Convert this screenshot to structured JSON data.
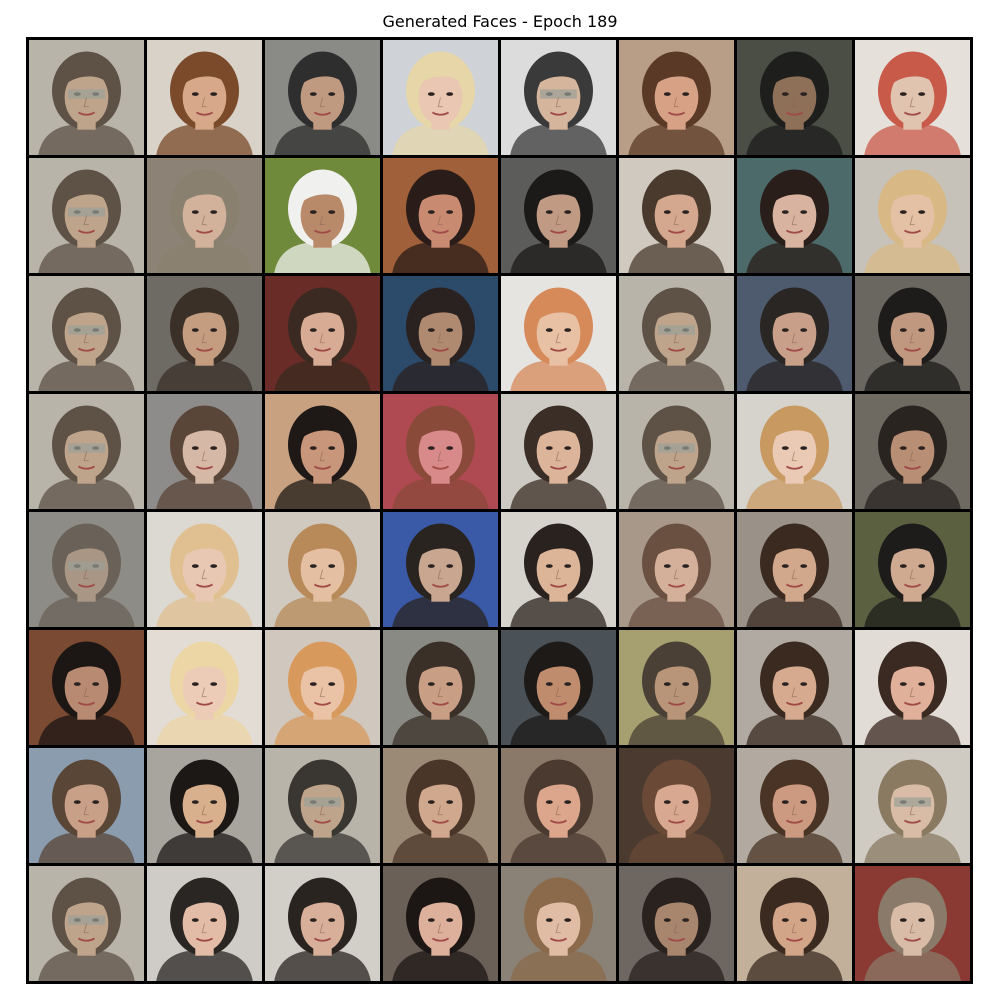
{
  "title": "Generated Faces - Epoch 189",
  "grid": {
    "rows": 8,
    "cols": 8,
    "tiles": [
      {
        "bg": "#b9b4aa",
        "hair": "#5e5246",
        "skin": "#bfa48c",
        "glasses": true
      },
      {
        "bg": "#d8d2c8",
        "hair": "#7a4a2a",
        "skin": "#d7a98a",
        "glasses": false
      },
      {
        "bg": "#8a8a86",
        "hair": "#2e2e2e",
        "skin": "#c09a80",
        "glasses": false
      },
      {
        "bg": "#cfd2d6",
        "hair": "#e6d6a8",
        "skin": "#e9c7b2",
        "glasses": false
      },
      {
        "bg": "#dcdcdc",
        "hair": "#3a3a3a",
        "skin": "#d6b59d",
        "glasses": true
      },
      {
        "bg": "#b89e86",
        "hair": "#5a3a26",
        "skin": "#d7a186",
        "glasses": false
      },
      {
        "bg": "#4a4e44",
        "hair": "#1e1e1c",
        "skin": "#8e7058",
        "glasses": false
      },
      {
        "bg": "#e6e0da",
        "hair": "#c85a4a",
        "skin": "#e0c4b0",
        "glasses": false
      },
      {
        "bg": "#b9b4aa",
        "hair": "#5e5246",
        "skin": "#bfa48c",
        "glasses": true
      },
      {
        "bg": "#8c8276",
        "hair": "#8a8070",
        "skin": "#d2b29a",
        "glasses": false
      },
      {
        "bg": "#6f8a3a",
        "hair": "#f0f0ee",
        "skin": "#b98a6a",
        "glasses": false
      },
      {
        "bg": "#a0603a",
        "hair": "#2a1c18",
        "skin": "#c88a70",
        "glasses": false
      },
      {
        "bg": "#5c5c5a",
        "hair": "#1c1a18",
        "skin": "#c09a82",
        "glasses": false
      },
      {
        "bg": "#cfc9c0",
        "hair": "#4a3a2e",
        "skin": "#d4a88e",
        "glasses": false
      },
      {
        "bg": "#4c6a6a",
        "hair": "#2a1e1a",
        "skin": "#d8b4a0",
        "glasses": false
      },
      {
        "bg": "#c6c2ba",
        "hair": "#d8b884",
        "skin": "#e4c0a4",
        "glasses": false
      },
      {
        "bg": "#b9b4aa",
        "hair": "#5e5246",
        "skin": "#bfa48c",
        "glasses": true
      },
      {
        "bg": "#6e6a64",
        "hair": "#3a3028",
        "skin": "#c49c80",
        "glasses": false
      },
      {
        "bg": "#6a2c26",
        "hair": "#3a2a22",
        "skin": "#d8ac94",
        "glasses": false
      },
      {
        "bg": "#2c4a6a",
        "hair": "#2a2220",
        "skin": "#b08a70",
        "glasses": false
      },
      {
        "bg": "#e6e4e0",
        "hair": "#d68a5a",
        "skin": "#e8c0a4",
        "glasses": false
      },
      {
        "bg": "#b9b4aa",
        "hair": "#5e5246",
        "skin": "#bfa48c",
        "glasses": true
      },
      {
        "bg": "#4e5a6e",
        "hair": "#2a2624",
        "skin": "#c8a08a",
        "glasses": false
      },
      {
        "bg": "#6a6660",
        "hair": "#1e1c1a",
        "skin": "#c09880",
        "glasses": false
      },
      {
        "bg": "#b9b4aa",
        "hair": "#5e5246",
        "skin": "#bfa48c",
        "glasses": true
      },
      {
        "bg": "#8e8c8a",
        "hair": "#5a4638",
        "skin": "#d6b8a6",
        "glasses": false
      },
      {
        "bg": "#c8a280",
        "hair": "#1e1816",
        "skin": "#c8967a",
        "glasses": false
      },
      {
        "bg": "#b04a52",
        "hair": "#8a4a3a",
        "skin": "#d88a8a",
        "glasses": false
      },
      {
        "bg": "#cdcac4",
        "hair": "#3a2e26",
        "skin": "#dcb49a",
        "glasses": false
      },
      {
        "bg": "#b9b4aa",
        "hair": "#5e5246",
        "skin": "#bfa48c",
        "glasses": true
      },
      {
        "bg": "#d6d2cc",
        "hair": "#c89a62",
        "skin": "#eacab4",
        "glasses": false
      },
      {
        "bg": "#6e6a62",
        "hair": "#2a2420",
        "skin": "#b88e74",
        "glasses": false
      },
      {
        "bg": "#8e8c86",
        "hair": "#6a6258",
        "skin": "#aa9684",
        "glasses": true
      },
      {
        "bg": "#dcd8d2",
        "hair": "#e0c090",
        "skin": "#e8c8b2",
        "glasses": false
      },
      {
        "bg": "#cfc9c0",
        "hair": "#b88a5a",
        "skin": "#e4bfa2",
        "glasses": false
      },
      {
        "bg": "#3a5aa8",
        "hair": "#2a2420",
        "skin": "#c8a690",
        "glasses": false
      },
      {
        "bg": "#d6d2cc",
        "hair": "#2a221e",
        "skin": "#dcb498",
        "glasses": false
      },
      {
        "bg": "#a8988a",
        "hair": "#6a5040",
        "skin": "#d4b09a",
        "glasses": false
      },
      {
        "bg": "#9a9288",
        "hair": "#3a2a20",
        "skin": "#d2a88c",
        "glasses": false
      },
      {
        "bg": "#5a6040",
        "hair": "#1e1c1a",
        "skin": "#d0aa90",
        "glasses": false
      },
      {
        "bg": "#7a4a32",
        "hair": "#1c1614",
        "skin": "#b88a72",
        "glasses": false
      },
      {
        "bg": "#e2dcd4",
        "hair": "#ecd6a6",
        "skin": "#ecccb6",
        "glasses": false
      },
      {
        "bg": "#d0c8be",
        "hair": "#d89a5c",
        "skin": "#eac2a6",
        "glasses": false
      },
      {
        "bg": "#8a8a84",
        "hair": "#3a3028",
        "skin": "#c89e84",
        "glasses": false
      },
      {
        "bg": "#4a5258",
        "hair": "#1e1a18",
        "skin": "#c08c6e",
        "glasses": false
      },
      {
        "bg": "#a6a070",
        "hair": "#4a4036",
        "skin": "#b89478",
        "glasses": false
      },
      {
        "bg": "#b0aaa2",
        "hair": "#3a2a20",
        "skin": "#d6aa8e",
        "glasses": false
      },
      {
        "bg": "#e2dcd6",
        "hair": "#3a2a22",
        "skin": "#e0b09a",
        "glasses": false
      },
      {
        "bg": "#8a9cae",
        "hair": "#5a4636",
        "skin": "#c8a088",
        "glasses": false
      },
      {
        "bg": "#a8a49e",
        "hair": "#1c1816",
        "skin": "#d8b08e",
        "glasses": false
      },
      {
        "bg": "#b9b4aa",
        "hair": "#3a3632",
        "skin": "#bfa48c",
        "glasses": true
      },
      {
        "bg": "#9a8a76",
        "hair": "#4a3628",
        "skin": "#d0a88e",
        "glasses": false
      },
      {
        "bg": "#8a7868",
        "hair": "#4a3a30",
        "skin": "#dca68c",
        "glasses": false
      },
      {
        "bg": "#4a3a30",
        "hair": "#6a4a36",
        "skin": "#d8a890",
        "glasses": false
      },
      {
        "bg": "#b2aaa0",
        "hair": "#4a3426",
        "skin": "#cc9a80",
        "glasses": false
      },
      {
        "bg": "#cfcac2",
        "hair": "#8a7a62",
        "skin": "#d8bca6",
        "glasses": true
      },
      {
        "bg": "#b9b4aa",
        "hair": "#5e5246",
        "skin": "#bfa48c",
        "glasses": true
      },
      {
        "bg": "#cfcbc6",
        "hair": "#2a2624",
        "skin": "#e2bca6",
        "glasses": false
      },
      {
        "bg": "#d2cec8",
        "hair": "#2a2420",
        "skin": "#d8b09a",
        "glasses": false
      },
      {
        "bg": "#6a6058",
        "hair": "#1c1614",
        "skin": "#dcb09a",
        "glasses": false
      },
      {
        "bg": "#8a8276",
        "hair": "#8a6a4a",
        "skin": "#e0bca4",
        "glasses": false
      },
      {
        "bg": "#6e6660",
        "hair": "#2a221e",
        "skin": "#a8866e",
        "glasses": false
      },
      {
        "bg": "#c2b09a",
        "hair": "#3a2a20",
        "skin": "#d2a488",
        "glasses": false
      },
      {
        "bg": "#8a3a32",
        "hair": "#8a7a6a",
        "skin": "#d8bca8",
        "glasses": false
      }
    ]
  }
}
